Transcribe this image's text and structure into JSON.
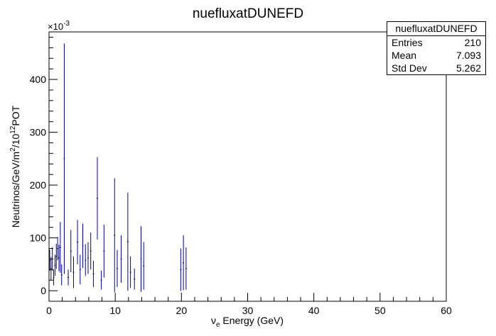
{
  "chart_data": {
    "type": "histogram-errorbars",
    "title": "nuefluxatDUNEFD",
    "xlabel": "ν_e Energy (GeV)",
    "ylabel": "Neutrinos/GeV/m^2/10^12POT",
    "y_multiplier": "×10^-3",
    "xlim": [
      0,
      60
    ],
    "ylim": [
      -20,
      490
    ],
    "x_ticks": [
      0,
      10,
      20,
      30,
      40,
      50,
      60
    ],
    "y_ticks": [
      0,
      100,
      200,
      300,
      400
    ],
    "bin_width": 0.2,
    "color": "#000099",
    "points": [
      {
        "x": 0.1,
        "y": 58,
        "err": 20
      },
      {
        "x": 0.3,
        "y": 42,
        "err": 22
      },
      {
        "x": 0.5,
        "y": 60,
        "err": 22
      },
      {
        "x": 0.7,
        "y": 25,
        "err": 15
      },
      {
        "x": 0.9,
        "y": 48,
        "err": 20
      },
      {
        "x": 1.1,
        "y": 65,
        "err": 24
      },
      {
        "x": 1.3,
        "y": 80,
        "err": 22
      },
      {
        "x": 1.5,
        "y": 62,
        "err": 25
      },
      {
        "x": 1.7,
        "y": 82,
        "err": 48
      },
      {
        "x": 1.9,
        "y": 30,
        "err": 20
      },
      {
        "x": 2.3,
        "y": 250,
        "err": 218
      },
      {
        "x": 2.9,
        "y": 25,
        "err": 15
      },
      {
        "x": 3.3,
        "y": 75,
        "err": 40
      },
      {
        "x": 3.7,
        "y": 35,
        "err": 30
      },
      {
        "x": 4.3,
        "y": 92,
        "err": 42
      },
      {
        "x": 4.7,
        "y": 40,
        "err": 28
      },
      {
        "x": 5.1,
        "y": 85,
        "err": 42
      },
      {
        "x": 5.5,
        "y": 58,
        "err": 30
      },
      {
        "x": 5.9,
        "y": 62,
        "err": 30
      },
      {
        "x": 6.3,
        "y": 75,
        "err": 35
      },
      {
        "x": 6.7,
        "y": 32,
        "err": 25
      },
      {
        "x": 7.3,
        "y": 175,
        "err": 78
      },
      {
        "x": 7.9,
        "y": 20,
        "err": 18
      },
      {
        "x": 8.3,
        "y": 75,
        "err": 50
      },
      {
        "x": 9.9,
        "y": 105,
        "err": 108
      },
      {
        "x": 10.3,
        "y": 42,
        "err": 35
      },
      {
        "x": 10.9,
        "y": 60,
        "err": 45
      },
      {
        "x": 11.9,
        "y": 93,
        "err": 93
      },
      {
        "x": 12.3,
        "y": 35,
        "err": 30
      },
      {
        "x": 12.9,
        "y": 22,
        "err": 20
      },
      {
        "x": 13.9,
        "y": 60,
        "err": 62
      },
      {
        "x": 14.3,
        "y": 47,
        "err": 45
      },
      {
        "x": 19.9,
        "y": 40,
        "err": 40
      },
      {
        "x": 20.3,
        "y": 53,
        "err": 52
      },
      {
        "x": 20.7,
        "y": 42,
        "err": 40
      }
    ],
    "stats_box": {
      "title": "nuefluxatDUNEFD",
      "rows": [
        {
          "label": "Entries",
          "value": "210"
        },
        {
          "label": "Mean",
          "value": "7.093"
        },
        {
          "label": "Std Dev",
          "value": "5.262"
        }
      ]
    }
  }
}
